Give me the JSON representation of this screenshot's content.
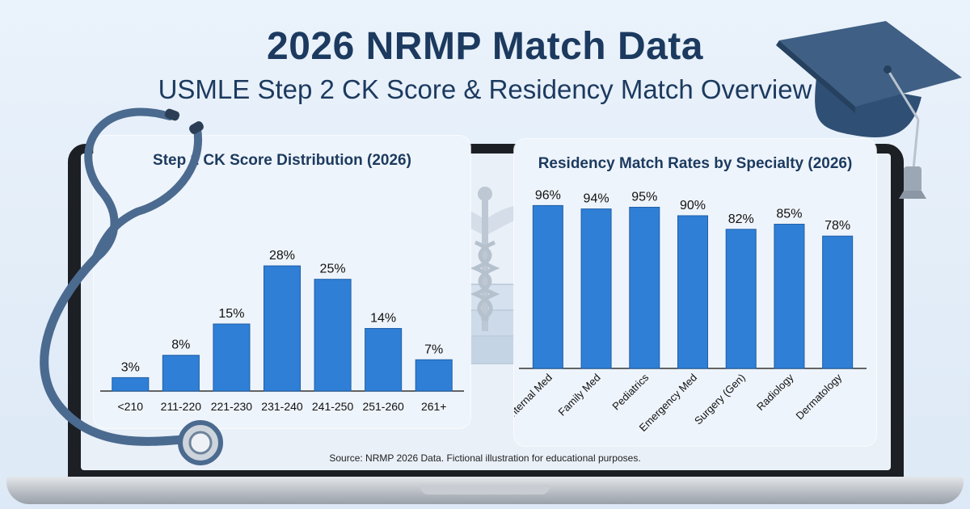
{
  "header": {
    "title": "2026 NRMP Match Data",
    "subtitle": "USMLE Step 2 CK Score & Residency Match Overview"
  },
  "chart_data": [
    {
      "type": "bar",
      "title": "Step 2 CK Score Distribution (2026)",
      "categories": [
        "<210",
        "211-220",
        "221-230",
        "231-240",
        "241-250",
        "251-260",
        "261+"
      ],
      "values": [
        3,
        8,
        15,
        28,
        25,
        14,
        7
      ],
      "data_labels": [
        "3%",
        "8%",
        "15%",
        "28%",
        "25%",
        "14%",
        "7%"
      ],
      "ylim": [
        0,
        30
      ],
      "grid": false,
      "color": "#2f7fd6"
    },
    {
      "type": "bar",
      "title": "Residency Match Rates by Specialty (2026)",
      "categories": [
        "Internal Med",
        "Family Med",
        "Pediatrics",
        "Emergency Med",
        "Surgery (Gen)",
        "Radiology",
        "Dermatology"
      ],
      "values": [
        96,
        94,
        95,
        90,
        82,
        85,
        78
      ],
      "data_labels": [
        "96%",
        "94%",
        "95%",
        "90%",
        "82%",
        "85%",
        "78%"
      ],
      "ylim": [
        0,
        100
      ],
      "grid": false,
      "color": "#2f7fd6",
      "tick_rotation": "diagonal"
    }
  ],
  "footer": {
    "source": "Source: NRMP 2026 Data. Fictional illustration for educational purposes."
  },
  "decorations": {
    "icons": [
      "stethoscope-icon",
      "graduation-cap-icon",
      "caduceus-icon",
      "books-icon"
    ],
    "accent_color": "#3f5f84"
  }
}
